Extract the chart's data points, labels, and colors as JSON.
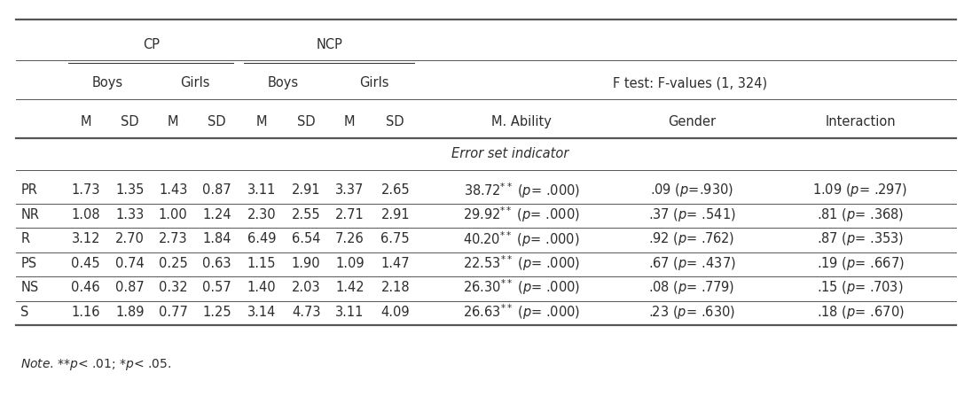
{
  "note": "Note. **p< .01; *p< .05.",
  "rows": [
    [
      "PR",
      "1.73",
      "1.35",
      "1.43",
      "0.87",
      "3.11",
      "2.91",
      "3.37",
      "2.65",
      "38.72** (p= .000)",
      ".09 (p=.930)",
      "1.09 (p= .297)"
    ],
    [
      "NR",
      "1.08",
      "1.33",
      "1.00",
      "1.24",
      "2.30",
      "2.55",
      "2.71",
      "2.91",
      "29.92** (p= .000)",
      ".37 (p= .541)",
      ".81 (p= .368)"
    ],
    [
      "R",
      "3.12",
      "2.70",
      "2.73",
      "1.84",
      "6.49",
      "6.54",
      "7.26",
      "6.75",
      "40.20** (p= .000)",
      ".92 (p= .762)",
      ".87 (p= .353)"
    ],
    [
      "PS",
      "0.45",
      "0.74",
      "0.25",
      "0.63",
      "1.15",
      "1.90",
      "1.09",
      "1.47",
      "22.53** (p= .000)",
      ".67 (p= .437)",
      ".19 (p= .667)"
    ],
    [
      "NS",
      "0.46",
      "0.87",
      "0.32",
      "0.57",
      "1.40",
      "2.03",
      "1.42",
      "2.18",
      "26.30** (p= .000)",
      ".08 (p= .779)",
      ".15 (p= .703)"
    ],
    [
      "S",
      "1.16",
      "1.89",
      "0.77",
      "1.25",
      "3.14",
      "4.73",
      "3.11",
      "4.09",
      "26.63** (p= .000)",
      ".23 (p= .630)",
      ".18 (p= .670)"
    ]
  ],
  "background_color": "#ffffff",
  "text_color": "#2d2d2d",
  "font_size": 10.5,
  "font_size_small": 9.5
}
